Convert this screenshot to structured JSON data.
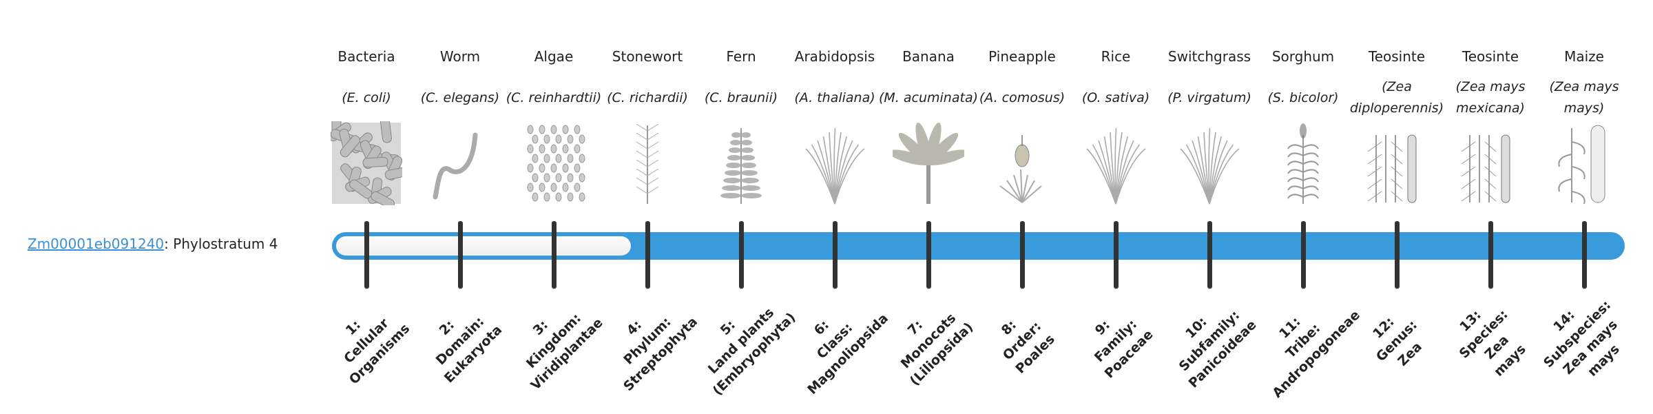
{
  "gene": {
    "id": "Zm00001eb091240",
    "suffix": ": Phylostratum 4"
  },
  "phylostratum": {
    "current": 4,
    "total": 14
  },
  "colors": {
    "bar": "#3899db",
    "tick": "#333333",
    "link": "#3a8fd8"
  },
  "organisms": [
    {
      "common": "Bacteria",
      "scientific": "(E. coli)",
      "icon": "bacteria-icon"
    },
    {
      "common": "Worm",
      "scientific": "(C. elegans)",
      "icon": "worm-icon"
    },
    {
      "common": "Algae",
      "scientific": "(C. reinhardtii)",
      "icon": "algae-icon"
    },
    {
      "common": "Stonewort",
      "scientific": "(C. richardii)",
      "icon": "stonewort-icon"
    },
    {
      "common": "Fern",
      "scientific": "(C. braunii)",
      "icon": "fern-icon"
    },
    {
      "common": "Arabidopsis",
      "scientific": "(A. thaliana)",
      "icon": "arabidopsis-icon"
    },
    {
      "common": "Banana",
      "scientific": "(M. acuminata)",
      "icon": "banana-icon"
    },
    {
      "common": "Pineapple",
      "scientific": "(A. comosus)",
      "icon": "pineapple-icon"
    },
    {
      "common": "Rice",
      "scientific": "(O. sativa)",
      "icon": "rice-icon"
    },
    {
      "common": "Switchgrass",
      "scientific": "(P. virgatum)",
      "icon": "switchgrass-icon"
    },
    {
      "common": "Sorghum",
      "scientific": "(S. bicolor)",
      "icon": "sorghum-icon"
    },
    {
      "common": "Teosinte",
      "scientific": "(Zea diploperennis)",
      "icon": "teosinte-icon"
    },
    {
      "common": "Teosinte",
      "scientific": "(Zea mays mexicana)",
      "icon": "teosinte-icon"
    },
    {
      "common": "Maize",
      "scientific": "(Zea mays mays)",
      "icon": "maize-icon"
    }
  ],
  "strata": [
    {
      "lines": [
        "1:",
        "Cellular",
        "Organisms"
      ]
    },
    {
      "lines": [
        "2:",
        "Domain:",
        "Eukaryota"
      ]
    },
    {
      "lines": [
        "3:",
        "Kingdom:",
        "Viridiplantae"
      ]
    },
    {
      "lines": [
        "4:",
        "Phylum:",
        "Streptophyta"
      ]
    },
    {
      "lines": [
        "5:",
        "Land plants",
        "(Embryophyta)"
      ]
    },
    {
      "lines": [
        "6:",
        "Class:",
        "Magnoliopsida"
      ]
    },
    {
      "lines": [
        "7:",
        "Monocots",
        "(Liliopsida)"
      ]
    },
    {
      "lines": [
        "8:",
        "Order:",
        "Poales"
      ]
    },
    {
      "lines": [
        "9:",
        "Family:",
        "Poaceae"
      ]
    },
    {
      "lines": [
        "10:",
        "Subfamily:",
        "Panicoideae"
      ]
    },
    {
      "lines": [
        "11:",
        "Tribe:",
        "Andropogoneae"
      ]
    },
    {
      "lines": [
        "12:",
        "Genus:",
        "Zea"
      ]
    },
    {
      "lines": [
        "13:",
        "Species:",
        "Zea",
        "mays"
      ]
    },
    {
      "lines": [
        "14:",
        "Subspecies:",
        "Zea mays",
        "mays"
      ]
    }
  ]
}
